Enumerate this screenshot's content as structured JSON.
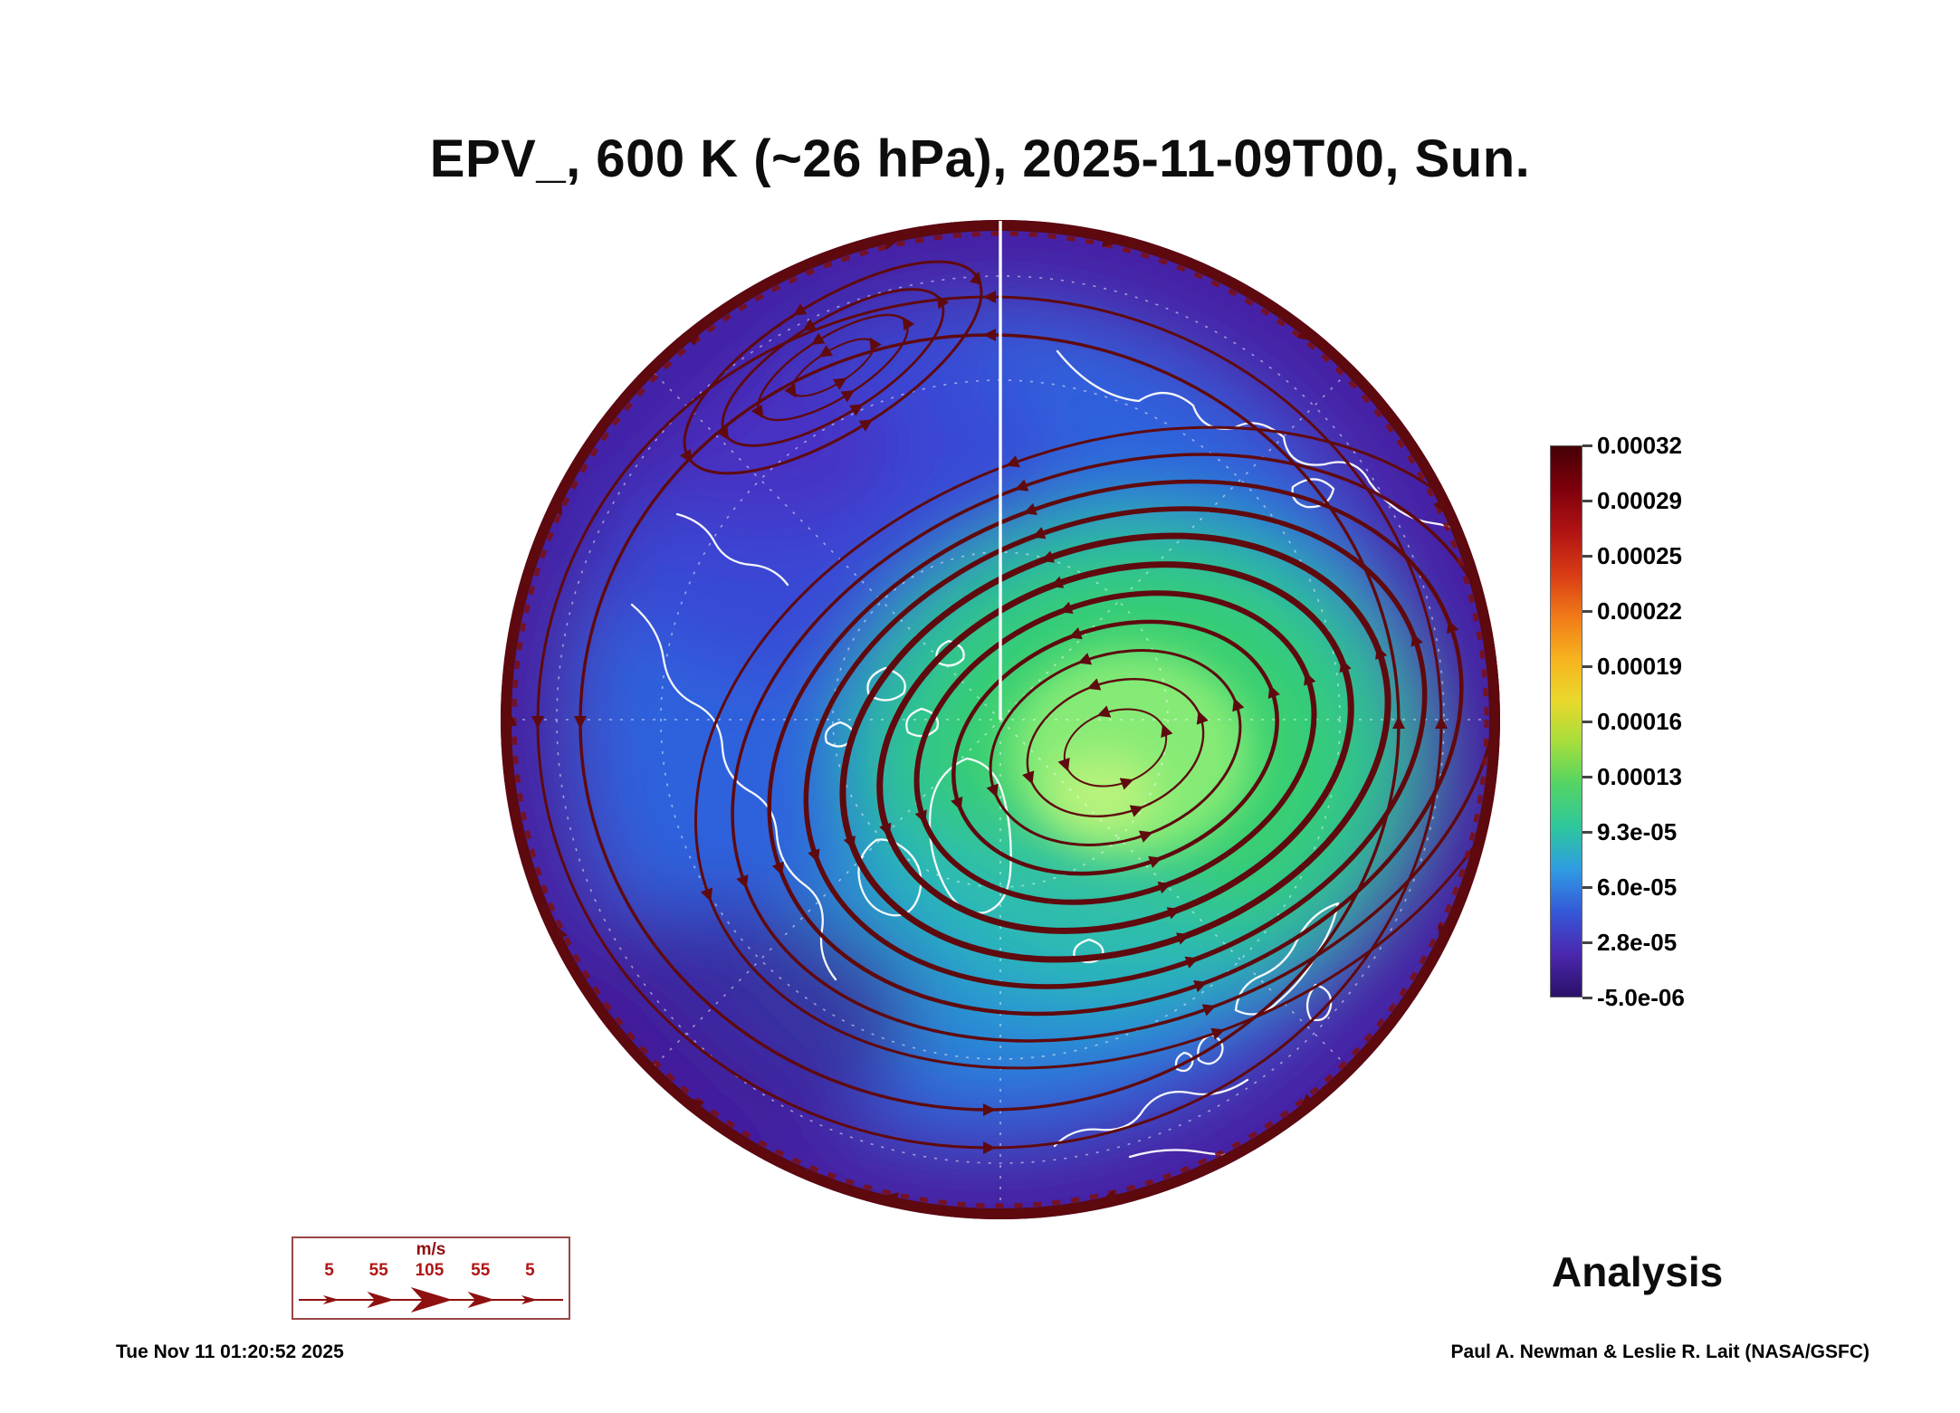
{
  "title": "EPV_, 600 K (~26 hPa), 2025-11-09T00, Sun.",
  "footer": {
    "timestamp": "Tue Nov 11 01:20:52 2025",
    "credit": "Paul A. Newman & Leslie R. Lait (NASA/GSFC)",
    "analysis_label": "Analysis"
  },
  "colorbar": {
    "ticks": [
      "0.00032",
      "0.00029",
      "0.00025",
      "0.00022",
      "0.00019",
      "0.00016",
      "0.00013",
      "9.3e-05",
      "6.0e-05",
      "2.8e-05",
      "-5.0e-06"
    ],
    "gradient_top_to_bottom": [
      "#450006",
      "#7e000c",
      "#b01313",
      "#d83a15",
      "#f07818",
      "#f7b21f",
      "#ead82b",
      "#a5de3c",
      "#52d465",
      "#2ec79d",
      "#2f9ce2",
      "#3558d8",
      "#4b27ae",
      "#2a1168"
    ]
  },
  "wind_legend": {
    "units": "m/s",
    "values": [
      "5",
      "55",
      "105",
      "55",
      "5"
    ]
  },
  "map_colors": {
    "streamline": "#5f0a0e",
    "rim_ring": "#5d090d",
    "coastline": "#ffffff",
    "vortex_core_green": "#8fee77",
    "outer_purple": "#3f22a8"
  },
  "chart_data": {
    "type": "heatmap",
    "title": "EPV_, 600 K (~26 hPa), 2025-11-09T00, Sun.",
    "variable": "EPV (Ertel potential vorticity)",
    "level": "600 K (~26 hPa)",
    "valid_time": "2025-11-09T00",
    "valid_day": "Sun.",
    "projection": "north polar stereographic (Northern Hemisphere)",
    "field_label": "Analysis",
    "colorbar_ticks": [
      0.00032,
      0.00029,
      0.00025,
      0.00022,
      0.00019,
      0.00016,
      0.00013,
      9.3e-05,
      6e-05,
      2.8e-05,
      -5e-06
    ],
    "colorbar_range": [
      -5e-06,
      0.00032
    ],
    "wind_scale_ms": [
      5,
      55,
      105,
      55,
      5
    ],
    "overlays": [
      "wind streamlines with arrowheads",
      "white coastlines",
      "dashed latitude/longitude graticule",
      "solid white reference meridian"
    ],
    "pattern": "polar vortex with elevated EPV (green, ~0.00009-0.00016) offset toward the Eurasian side, lower EPV (blue/purple, ~0.00002-0.00006) in midlatitudes, dark maroon high-EPV ring at the map edge, elongated anticyclonic streamline gyre over the Alaska/upper-left sector"
  }
}
